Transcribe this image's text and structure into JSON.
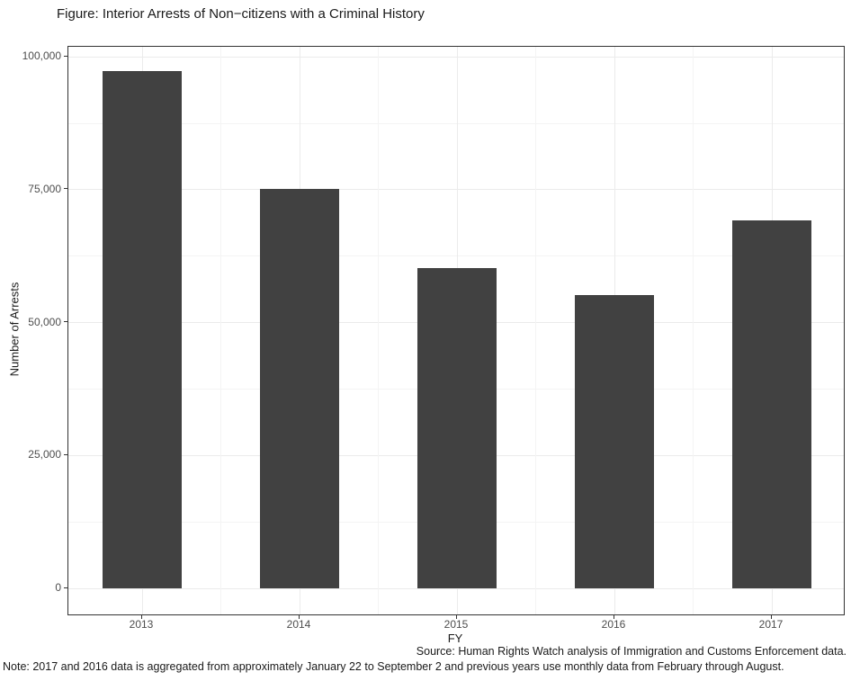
{
  "figure": {
    "title": "Figure: Interior Arrests of Non−citizens with a Criminal History",
    "source": "Source: Human Rights Watch analysis of Immigration and Customs Enforcement data.",
    "note": "Note: 2017 and 2016 data is aggregated from approximately January 22 to September 2 and previous years use monthly data from February through August."
  },
  "chart_data": {
    "type": "bar",
    "title": "Figure: Interior Arrests of Non−citizens with a Criminal History",
    "xlabel": "FY",
    "ylabel": "Number of Arrests",
    "categories": [
      "2013",
      "2014",
      "2015",
      "2016",
      "2017"
    ],
    "values": [
      97300,
      75200,
      60200,
      55200,
      69200
    ],
    "ylim": [
      0,
      100000
    ],
    "yticks": [
      0,
      25000,
      50000,
      75000,
      100000
    ],
    "ytick_labels": [
      "0",
      "25,000",
      "50,000",
      "75,000",
      "100,000"
    ],
    "yticks_minor": [
      12500,
      37500,
      62500,
      87500
    ],
    "grid": "on",
    "legend": "none",
    "colors": {
      "bar": "#414141",
      "grid_major": "#ebebeb",
      "grid_minor": "#f4f4f4",
      "panel_border": "#333333",
      "tick_text": "#4d4d4d"
    }
  }
}
